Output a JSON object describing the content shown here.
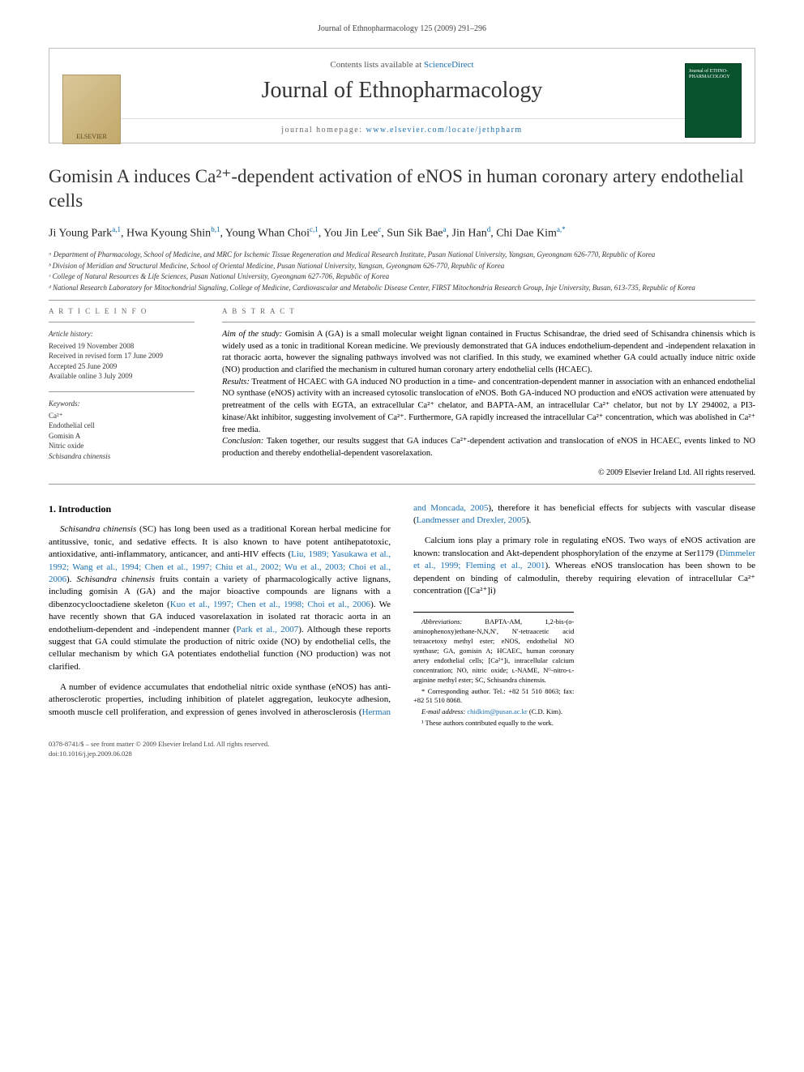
{
  "running_header": "Journal of Ethnopharmacology 125 (2009) 291–296",
  "frame": {
    "contents_prefix": "Contents lists available at ",
    "contents_link": "ScienceDirect",
    "journal_title": "Journal of Ethnopharmacology",
    "homepage_label": "journal homepage: ",
    "homepage_url": "www.elsevier.com/locate/jethpharm",
    "elsevier_label": "ELSEVIER",
    "cover_text": "Journal of ETHNO-PHARMACOLOGY"
  },
  "article": {
    "title": "Gomisin A induces Ca²⁺-dependent activation of eNOS in human coronary artery endothelial cells",
    "authors_html": "Ji Young Park<sup>a,1</sup>, Hwa Kyoung Shin<sup>b,1</sup>, Young Whan Choi<sup>c,1</sup>, You Jin Lee<sup>c</sup>, Sun Sik Bae<sup>a</sup>, Jin Han<sup>d</sup>, Chi Dae Kim<sup>a,*</sup>",
    "affiliations": [
      "ᵃ Department of Pharmacology, School of Medicine, and MRC for Ischemic Tissue Regeneration and Medical Research Institute, Pusan National University, Yangsan, Gyeongnam 626-770, Republic of Korea",
      "ᵇ Division of Meridian and Structural Medicine, School of Oriental Medicine, Pusan National University, Yangsan, Gyeongnam 626-770, Republic of Korea",
      "ᶜ College of Natural Resources & Life Sciences, Pusan National University, Gyeongnam 627-706, Republic of Korea",
      "ᵈ National Research Laboratory for Mitochondrial Signaling, College of Medicine, Cardiovascular and Metabolic Disease Center, FIRST Mitochondria Research Group, Inje University, Busan, 613-735, Republic of Korea"
    ]
  },
  "article_info": {
    "heading": "A R T I C L E   I N F O",
    "history_label": "Article history:",
    "history": [
      "Received 19 November 2008",
      "Received in revised form 17 June 2009",
      "Accepted 25 June 2009",
      "Available online 3 July 2009"
    ],
    "keywords_label": "Keywords:",
    "keywords": [
      "Ca²⁺",
      "Endothelial cell",
      "Gomisin A",
      "Nitric oxide",
      "Schisandra chinensis"
    ]
  },
  "abstract": {
    "heading": "A B S T R A C T",
    "segments": [
      {
        "label": "Aim of the study:",
        "text": " Gomisin A (GA) is a small molecular weight lignan contained in Fructus Schisandrae, the dried seed of Schisandra chinensis which is widely used as a tonic in traditional Korean medicine. We previously demonstrated that GA induces endothelium-dependent and -independent relaxation in rat thoracic aorta, however the signaling pathways involved was not clarified. In this study, we examined whether GA could actually induce nitric oxide (NO) production and clarified the mechanism in cultured human coronary artery endothelial cells (HCAEC)."
      },
      {
        "label": "Results:",
        "text": " Treatment of HCAEC with GA induced NO production in a time- and concentration-dependent manner in association with an enhanced endothelial NO synthase (eNOS) activity with an increased cytosolic translocation of eNOS. Both GA-induced NO production and eNOS activation were attenuated by pretreatment of the cells with EGTA, an extracellular Ca²⁺ chelator, and BAPTA-AM, an intracellular Ca²⁺ chelator, but not by LY 294002, a PI3-kinase/Akt inhibitor, suggesting involvement of Ca²⁺. Furthermore, GA rapidly increased the intracellular Ca²⁺ concentration, which was abolished in Ca²⁺ free media."
      },
      {
        "label": "Conclusion:",
        "text": " Taken together, our results suggest that GA induces Ca²⁺-dependent activation and translocation of eNOS in HCAEC, events linked to NO production and thereby endothelial-dependent vasorelaxation."
      }
    ],
    "copyright": "© 2009 Elsevier Ireland Ltd. All rights reserved."
  },
  "body": {
    "section_heading": "1. Introduction",
    "paragraphs": [
      "Schisandra chinensis (SC) has long been used as a traditional Korean herbal medicine for antitussive, tonic, and sedative effects. It is also known to have potent antihepatotoxic, antioxidative, anti-inflammatory, anticancer, and anti-HIV effects (Liu, 1989; Yasukawa et al., 1992; Wang et al., 1994; Chen et al., 1997; Chiu et al., 2002; Wu et al., 2003; Choi et al., 2006). Schisandra chinensis fruits contain a variety of pharmacologically active lignans, including gomisin A (GA) and the major bioactive compounds are lignans with a dibenzocyclooctadiene skeleton (Kuo et al., 1997; Chen et al., 1998; Choi et al., 2006). We have recently shown that GA induced vasorelaxation in isolated rat thoracic aorta in an endothelium-dependent and -independent manner (Park et al., 2007). Although these reports suggest that GA could stimulate the production of nitric oxide (NO) by endothelial cells, the cellular mechanism by which GA potentiates endothelial function (NO production) was not clarified.",
      "A number of evidence accumulates that endothelial nitric oxide synthase (eNOS) has anti-atherosclerotic properties, including inhibition of platelet aggregation, leukocyte adhesion, smooth muscle cell proliferation, and expression of genes involved in atherosclerosis (Herman and Moncada, 2005), therefore it has beneficial effects for subjects with vascular disease (Landmesser and Drexler, 2005).",
      "Calcium ions play a primary role in regulating eNOS. Two ways of eNOS activation are known: translocation and Akt-dependent phosphorylation of the enzyme at Ser1179 (Dimmeler et al., 1999; Fleming et al., 2001). Whereas eNOS translocation has been shown to be dependent on binding of calmodulin, thereby requiring elevation of intracellular Ca²⁺ concentration ([Ca²⁺]i)"
    ]
  },
  "footnotes": {
    "abbrev_label": "Abbreviations:",
    "abbrev_text": " BAPTA-AM, 1,2-bis-(o-aminophenoxy)ethane-N,N,N′, N′-tetraacetic acid tetraacetoxy methyl ester; eNOS, endothelial NO synthase; GA, gomisin A; HCAEC, human coronary artery endothelial cells; [Ca²⁺]i, intracellular calcium concentration; NO, nitric oxide; ʟ-NAME, Nᴳ-nitro-ʟ-arginine methyl ester; SC, Schisandra chinensis.",
    "corr_label": "* Corresponding author. ",
    "corr_text": "Tel.: +82 51 510 8063; fax: +82 51 510 8068.",
    "email_label": "E-mail address: ",
    "email": "chidkim@pusan.ac.kr",
    "email_suffix": " (C.D. Kim).",
    "equal": "¹ These authors contributed equally to the work."
  },
  "doi": {
    "line1": "0378-8741/$ – see front matter © 2009 Elsevier Ireland Ltd. All rights reserved.",
    "line2": "doi:10.1016/j.jep.2009.06.028"
  }
}
